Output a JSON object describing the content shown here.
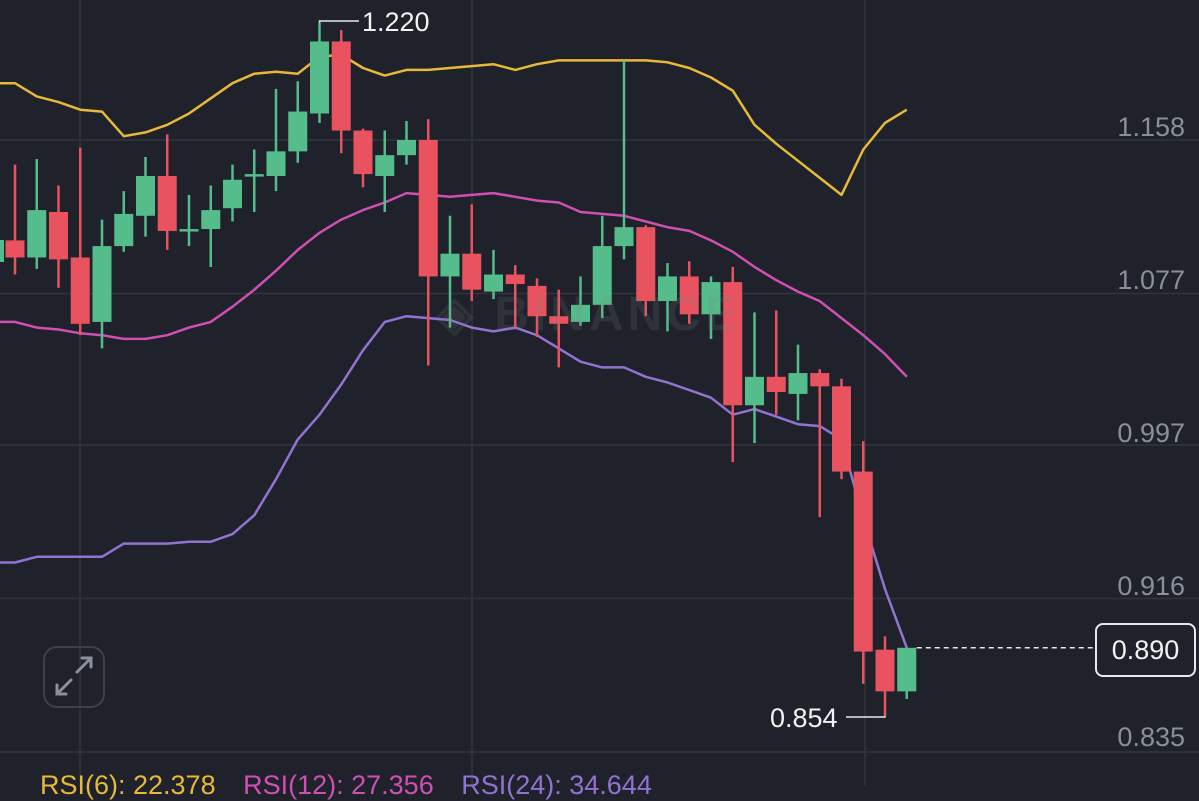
{
  "chart_data": {
    "type": "candlestick",
    "y_ticks": [
      "1.158",
      "1.077",
      "0.997",
      "0.916",
      "0.835"
    ],
    "y_tick_values": [
      1.158,
      1.077,
      0.997,
      0.916,
      0.835
    ],
    "ylim": [
      0.82,
      1.227
    ],
    "grid": true,
    "current_price": "0.890",
    "high_label": "1.220",
    "low_label": "0.854",
    "colors": {
      "up": "#55bd8b",
      "down": "#e9535f",
      "upper_band": "#e8b83a",
      "middle_band": "#d04fb5",
      "lower_band": "#9273d2",
      "background": "#1f222a"
    },
    "candles": [
      {
        "o": 1.105,
        "h": 1.145,
        "l": 1.087,
        "c": 1.096
      },
      {
        "o": 1.096,
        "h": 1.148,
        "l": 1.09,
        "c": 1.121
      },
      {
        "o": 1.12,
        "h": 1.134,
        "l": 1.08,
        "c": 1.095
      },
      {
        "o": 1.096,
        "h": 1.154,
        "l": 1.055,
        "c": 1.061
      },
      {
        "o": 1.062,
        "h": 1.116,
        "l": 1.048,
        "c": 1.102
      },
      {
        "o": 1.102,
        "h": 1.131,
        "l": 1.099,
        "c": 1.119
      },
      {
        "o": 1.118,
        "h": 1.149,
        "l": 1.107,
        "c": 1.139
      },
      {
        "o": 1.139,
        "h": 1.161,
        "l": 1.1,
        "c": 1.11
      },
      {
        "o": 1.11,
        "h": 1.129,
        "l": 1.102,
        "c": 1.111
      },
      {
        "o": 1.111,
        "h": 1.134,
        "l": 1.091,
        "c": 1.121
      },
      {
        "o": 1.122,
        "h": 1.145,
        "l": 1.115,
        "c": 1.137
      },
      {
        "o": 1.139,
        "h": 1.153,
        "l": 1.12,
        "c": 1.14
      },
      {
        "o": 1.139,
        "h": 1.185,
        "l": 1.131,
        "c": 1.152
      },
      {
        "o": 1.152,
        "h": 1.189,
        "l": 1.146,
        "c": 1.173
      },
      {
        "o": 1.172,
        "h": 1.22,
        "l": 1.167,
        "c": 1.21
      },
      {
        "o": 1.21,
        "h": 1.216,
        "l": 1.151,
        "c": 1.163
      },
      {
        "o": 1.163,
        "h": 1.164,
        "l": 1.133,
        "c": 1.14
      },
      {
        "o": 1.139,
        "h": 1.163,
        "l": 1.12,
        "c": 1.15
      },
      {
        "o": 1.15,
        "h": 1.168,
        "l": 1.145,
        "c": 1.158
      },
      {
        "o": 1.158,
        "h": 1.169,
        "l": 1.039,
        "c": 1.086
      },
      {
        "o": 1.086,
        "h": 1.118,
        "l": 1.059,
        "c": 1.098
      },
      {
        "o": 1.098,
        "h": 1.124,
        "l": 1.073,
        "c": 1.079
      },
      {
        "o": 1.078,
        "h": 1.1,
        "l": 1.074,
        "c": 1.087
      },
      {
        "o": 1.087,
        "h": 1.092,
        "l": 1.059,
        "c": 1.082
      },
      {
        "o": 1.081,
        "h": 1.085,
        "l": 1.054,
        "c": 1.065
      },
      {
        "o": 1.065,
        "h": 1.079,
        "l": 1.038,
        "c": 1.061
      },
      {
        "o": 1.062,
        "h": 1.086,
        "l": 1.06,
        "c": 1.071
      },
      {
        "o": 1.071,
        "h": 1.118,
        "l": 1.064,
        "c": 1.102
      },
      {
        "o": 1.102,
        "h": 1.2,
        "l": 1.095,
        "c": 1.112
      },
      {
        "o": 1.112,
        "h": 1.113,
        "l": 1.065,
        "c": 1.073
      },
      {
        "o": 1.073,
        "h": 1.093,
        "l": 1.057,
        "c": 1.086
      },
      {
        "o": 1.086,
        "h": 1.094,
        "l": 1.061,
        "c": 1.066
      },
      {
        "o": 1.066,
        "h": 1.086,
        "l": 1.053,
        "c": 1.083
      },
      {
        "o": 1.083,
        "h": 1.091,
        "l": 0.988,
        "c": 1.018
      },
      {
        "o": 1.018,
        "h": 1.067,
        "l": 0.998,
        "c": 1.033
      },
      {
        "o": 1.033,
        "h": 1.068,
        "l": 1.013,
        "c": 1.025
      },
      {
        "o": 1.024,
        "h": 1.05,
        "l": 1.01,
        "c": 1.035
      },
      {
        "o": 1.035,
        "h": 1.037,
        "l": 0.959,
        "c": 1.028
      },
      {
        "o": 1.028,
        "h": 1.032,
        "l": 0.979,
        "c": 0.983
      },
      {
        "o": 0.983,
        "h": 0.999,
        "l": 0.871,
        "c": 0.888
      },
      {
        "o": 0.889,
        "h": 0.896,
        "l": 0.854,
        "c": 0.867
      },
      {
        "o": 0.867,
        "h": 0.89,
        "l": 0.863,
        "c": 0.89
      }
    ],
    "bollinger": {
      "upper": [
        1.188,
        1.181,
        1.178,
        1.174,
        1.173,
        1.16,
        1.162,
        1.166,
        1.172,
        1.18,
        1.188,
        1.193,
        1.194,
        1.193,
        1.202,
        1.203,
        1.196,
        1.192,
        1.195,
        1.195,
        1.196,
        1.197,
        1.198,
        1.195,
        1.198,
        1.2,
        1.2,
        1.2,
        1.2,
        1.2,
        1.199,
        1.196,
        1.191,
        1.184,
        1.166,
        1.156,
        1.147,
        1.138,
        1.129,
        1.153,
        1.167,
        1.174
      ],
      "middle": [
        1.062,
        1.059,
        1.058,
        1.056,
        1.055,
        1.053,
        1.053,
        1.055,
        1.059,
        1.062,
        1.07,
        1.079,
        1.089,
        1.1,
        1.109,
        1.116,
        1.121,
        1.125,
        1.13,
        1.129,
        1.128,
        1.129,
        1.13,
        1.128,
        1.126,
        1.125,
        1.12,
        1.119,
        1.118,
        1.115,
        1.112,
        1.11,
        1.105,
        1.099,
        1.091,
        1.084,
        1.078,
        1.073,
        1.064,
        1.055,
        1.045,
        1.033
      ],
      "lower": [
        0.935,
        0.938,
        0.938,
        0.938,
        0.938,
        0.945,
        0.945,
        0.945,
        0.946,
        0.946,
        0.95,
        0.96,
        0.979,
        1.0,
        1.013,
        1.029,
        1.047,
        1.062,
        1.065,
        1.064,
        1.063,
        1.059,
        1.057,
        1.059,
        1.055,
        1.048,
        1.041,
        1.038,
        1.038,
        1.033,
        1.03,
        1.026,
        1.022,
        1.013,
        1.016,
        1.012,
        1.008,
        1.007,
        1.0,
        0.958,
        0.921,
        0.89
      ]
    },
    "rsi": [
      {
        "label": "RSI(6): 22.378",
        "color": "#e8b83a"
      },
      {
        "label": "RSI(12): 27.356",
        "color": "#d04fb5"
      },
      {
        "label": "RSI(24): 34.644",
        "color": "#9273d2"
      }
    ]
  },
  "watermark": "BINANCE",
  "controls": {
    "expand_icon": "expand-arrows-icon"
  }
}
